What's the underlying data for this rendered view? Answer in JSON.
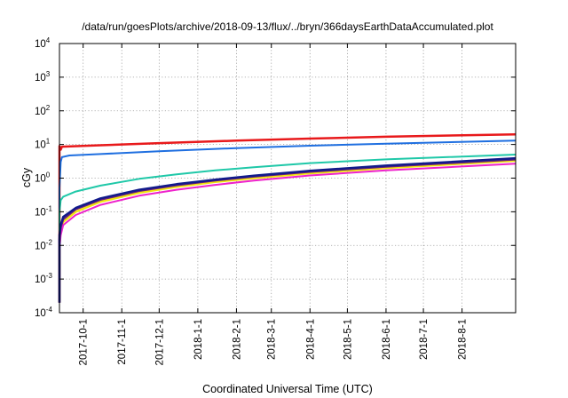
{
  "chart_data": {
    "type": "line",
    "title": "/data/run/goesPlots/archive/2018-09-13/flux/../bryn/366daysEarthDataAccumulated.plot",
    "xlabel": "Coordinated Universal Time (UTC)",
    "ylabel": "cGy",
    "y_scale": "log",
    "ylim": [
      0.0001,
      10000
    ],
    "xlim": [
      "2017-09-12",
      "2018-09-13"
    ],
    "grid": true,
    "legend": "none",
    "y_ticks": [
      {
        "value": 0.0001,
        "base": "10",
        "exp": "-4"
      },
      {
        "value": 0.001,
        "base": "10",
        "exp": "-3"
      },
      {
        "value": 0.01,
        "base": "10",
        "exp": "-2"
      },
      {
        "value": 0.1,
        "base": "10",
        "exp": "-1"
      },
      {
        "value": 1,
        "base": "10",
        "exp": "0"
      },
      {
        "value": 10,
        "base": "10",
        "exp": "1"
      },
      {
        "value": 100,
        "base": "10",
        "exp": "2"
      },
      {
        "value": 1000,
        "base": "10",
        "exp": "3"
      },
      {
        "value": 10000,
        "base": "10",
        "exp": "4"
      }
    ],
    "x_ticks": [
      {
        "date": "2017-10-01",
        "label": "2017-10-1"
      },
      {
        "date": "2017-11-01",
        "label": "2017-11-1"
      },
      {
        "date": "2017-12-01",
        "label": "2017-12-1"
      },
      {
        "date": "2018-01-01",
        "label": "2018-1-1"
      },
      {
        "date": "2018-02-01",
        "label": "2018-2-1"
      },
      {
        "date": "2018-03-01",
        "label": "2018-3-1"
      },
      {
        "date": "2018-04-01",
        "label": "2018-4-1"
      },
      {
        "date": "2018-05-01",
        "label": "2018-5-1"
      },
      {
        "date": "2018-06-01",
        "label": "2018-6-1"
      },
      {
        "date": "2018-07-01",
        "label": "2018-7-1"
      },
      {
        "date": "2018-08-01",
        "label": "2018-8-1"
      }
    ],
    "series": [
      {
        "color": "#e8191b",
        "width": 2.5,
        "points": [
          [
            "2017-09-12",
            0.0002
          ],
          [
            "2017-09-12",
            9.0
          ],
          [
            "2017-09-13",
            7.0
          ],
          [
            "2017-09-14",
            8.6
          ],
          [
            "2017-10-15",
            9.5
          ],
          [
            "2017-12-01",
            11.0
          ],
          [
            "2018-02-01",
            13.0
          ],
          [
            "2018-04-01",
            15.0
          ],
          [
            "2018-06-01",
            17.0
          ],
          [
            "2018-09-13",
            20.0
          ]
        ]
      },
      {
        "color": "#1f6fe0",
        "width": 2,
        "points": [
          [
            "2017-09-12",
            0.0002
          ],
          [
            "2017-09-12",
            0.5
          ],
          [
            "2017-09-13",
            3.0
          ],
          [
            "2017-09-14",
            4.2
          ],
          [
            "2017-09-20",
            4.7
          ],
          [
            "2017-10-15",
            5.2
          ],
          [
            "2017-12-01",
            6.3
          ],
          [
            "2018-02-01",
            7.8
          ],
          [
            "2018-04-01",
            9.2
          ],
          [
            "2018-06-01",
            10.5
          ],
          [
            "2018-09-13",
            13.0
          ]
        ]
      },
      {
        "color": "#1fc8a8",
        "width": 2,
        "points": [
          [
            "2017-09-12",
            0.0002
          ],
          [
            "2017-09-12",
            0.1
          ],
          [
            "2017-09-13",
            0.22
          ],
          [
            "2017-09-15",
            0.28
          ],
          [
            "2017-09-25",
            0.4
          ],
          [
            "2017-10-15",
            0.6
          ],
          [
            "2017-11-15",
            0.95
          ],
          [
            "2017-12-15",
            1.3
          ],
          [
            "2018-01-15",
            1.7
          ],
          [
            "2018-02-15",
            2.1
          ],
          [
            "2018-04-01",
            2.8
          ],
          [
            "2018-06-01",
            3.6
          ],
          [
            "2018-09-13",
            5.0
          ]
        ]
      },
      {
        "color": "#f2e60e",
        "width": 2.5,
        "points": [
          [
            "2017-09-12",
            0.0002
          ],
          [
            "2017-09-12",
            0.01
          ],
          [
            "2017-09-13",
            0.03
          ],
          [
            "2017-09-15",
            0.05
          ],
          [
            "2017-09-25",
            0.1
          ],
          [
            "2017-10-15",
            0.2
          ],
          [
            "2017-11-15",
            0.37
          ],
          [
            "2017-12-15",
            0.55
          ],
          [
            "2018-01-15",
            0.77
          ],
          [
            "2018-02-15",
            1.0
          ],
          [
            "2018-04-01",
            1.4
          ],
          [
            "2018-06-01",
            2.0
          ],
          [
            "2018-09-13",
            3.3
          ]
        ]
      },
      {
        "color": "#ee22cc",
        "width": 2,
        "points": [
          [
            "2017-09-12",
            0.0002
          ],
          [
            "2017-09-12",
            0.008
          ],
          [
            "2017-09-13",
            0.02
          ],
          [
            "2017-09-15",
            0.04
          ],
          [
            "2017-09-25",
            0.08
          ],
          [
            "2017-10-15",
            0.16
          ],
          [
            "2017-11-15",
            0.3
          ],
          [
            "2017-12-15",
            0.45
          ],
          [
            "2018-01-15",
            0.63
          ],
          [
            "2018-02-15",
            0.85
          ],
          [
            "2018-04-01",
            1.2
          ],
          [
            "2018-06-01",
            1.7
          ],
          [
            "2018-09-13",
            2.7
          ]
        ]
      },
      {
        "color": "#6a1f7a",
        "width": 2.5,
        "points": [
          [
            "2017-09-12",
            0.0002
          ],
          [
            "2017-09-12",
            0.015
          ],
          [
            "2017-09-13",
            0.035
          ],
          [
            "2017-09-15",
            0.06
          ],
          [
            "2017-09-25",
            0.12
          ],
          [
            "2017-10-15",
            0.23
          ],
          [
            "2017-11-15",
            0.42
          ],
          [
            "2017-12-15",
            0.62
          ],
          [
            "2018-01-15",
            0.86
          ],
          [
            "2018-02-15",
            1.12
          ],
          [
            "2018-04-01",
            1.55
          ],
          [
            "2018-06-01",
            2.2
          ],
          [
            "2018-09-13",
            3.6
          ]
        ]
      },
      {
        "color": "#111a8a",
        "width": 2.5,
        "points": [
          [
            "2017-09-12",
            0.0002
          ],
          [
            "2017-09-12",
            0.02
          ],
          [
            "2017-09-13",
            0.04
          ],
          [
            "2017-09-15",
            0.07
          ],
          [
            "2017-09-25",
            0.13
          ],
          [
            "2017-10-15",
            0.25
          ],
          [
            "2017-11-15",
            0.45
          ],
          [
            "2017-12-15",
            0.66
          ],
          [
            "2018-01-15",
            0.9
          ],
          [
            "2018-02-15",
            1.18
          ],
          [
            "2018-04-01",
            1.65
          ],
          [
            "2018-06-01",
            2.35
          ],
          [
            "2018-09-13",
            3.9
          ]
        ]
      }
    ]
  }
}
